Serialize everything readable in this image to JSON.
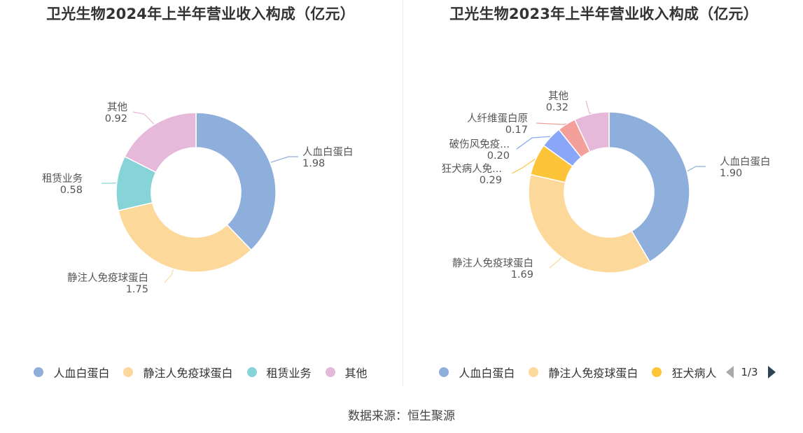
{
  "chart_data": [
    {
      "type": "pie",
      "title": "卫光生物2024年上半年营业收入构成（亿元）",
      "slices": [
        {
          "name": "人血白蛋白",
          "value": 1.98,
          "label_name": "人血白蛋白",
          "label_value": "1.98",
          "color": "#8eaedb"
        },
        {
          "name": "静注人免疫球蛋白",
          "value": 1.75,
          "label_name": "静注人免疫球蛋白",
          "label_value": "1.75",
          "color": "#fdd89b"
        },
        {
          "name": "租赁业务",
          "value": 0.58,
          "label_name": "租赁业务",
          "label_value": "0.58",
          "color": "#86d3d8"
        },
        {
          "name": "其他",
          "value": 0.92,
          "label_name": "其他",
          "label_value": "0.92",
          "color": "#e6b8d9"
        }
      ],
      "legend": {
        "placement": "bottom",
        "items": [
          "人血白蛋白",
          "静注人免疫球蛋白",
          "租赁业务",
          "其他"
        ]
      }
    },
    {
      "type": "pie",
      "title": "卫光生物2023年上半年营业收入构成（亿元）",
      "slices": [
        {
          "name": "人血白蛋白",
          "value": 1.9,
          "label_name": "人血白蛋白",
          "label_value": "1.90",
          "color": "#8eaedb"
        },
        {
          "name": "静注人免疫球蛋白",
          "value": 1.69,
          "label_name": "静注人免疫球蛋白",
          "label_value": "1.69",
          "color": "#fdd89b"
        },
        {
          "name": "狂犬病人免疫球蛋白",
          "value": 0.29,
          "label_name": "狂犬病人免...",
          "label_value": "0.29",
          "color": "#fdc43a"
        },
        {
          "name": "破伤风免疫球蛋白",
          "value": 0.2,
          "label_name": "破伤风免疫...",
          "label_value": "0.20",
          "color": "#8aa6f8"
        },
        {
          "name": "人纤维蛋白原",
          "value": 0.17,
          "label_name": "人纤维蛋白原",
          "label_value": "0.17",
          "color": "#f4a09a"
        },
        {
          "name": "其他",
          "value": 0.32,
          "label_name": "其他",
          "label_value": "0.32",
          "color": "#e6b8d9"
        }
      ],
      "legend": {
        "placement": "bottom",
        "items": [
          "人血白蛋白",
          "静注人免疫球蛋白",
          "狂犬病人"
        ],
        "pager": "1/3"
      }
    }
  ],
  "source": "数据来源：恒生聚源"
}
